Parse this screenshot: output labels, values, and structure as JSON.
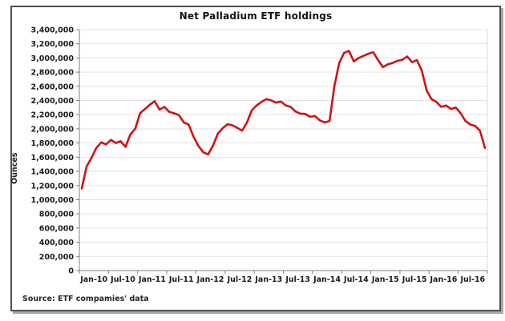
{
  "source_note": "Source: ETF compamies' data",
  "colors": {
    "line": "#d01212",
    "grid": "#e3e3e3",
    "axis": "#7f7f7f",
    "plot_right_border": "#d9d9d9",
    "text": "#1a1a1a",
    "frame_border": "#4f4f4f"
  },
  "chart_data": {
    "type": "line",
    "title": "Net Palladium ETF holdings",
    "xlabel": "",
    "ylabel": "Ounces",
    "ylim": [
      0,
      3400000
    ],
    "ytick_interval": 200000,
    "grid": "horizontal",
    "legend": "none",
    "x_start": "Jan-10",
    "x_end": "Dec-16",
    "frequency": "monthly",
    "xtick_labels": [
      "Jan-10",
      "Jul-10",
      "Jan-11",
      "Jul-11",
      "Jan-12",
      "Jul-12",
      "Jan-13",
      "Jul-13",
      "Jan-14",
      "Jul-14",
      "Jan-15",
      "Jul-15",
      "Jan-16",
      "Jul-16"
    ],
    "values": [
      1160000,
      1470000,
      1590000,
      1730000,
      1810000,
      1780000,
      1845000,
      1800000,
      1825000,
      1745000,
      1920000,
      2000000,
      2220000,
      2280000,
      2340000,
      2390000,
      2270000,
      2310000,
      2240000,
      2220000,
      2195000,
      2090000,
      2060000,
      1890000,
      1760000,
      1670000,
      1640000,
      1760000,
      1930000,
      2010000,
      2065000,
      2050000,
      2015000,
      1975000,
      2090000,
      2260000,
      2330000,
      2380000,
      2420000,
      2400000,
      2370000,
      2385000,
      2330000,
      2310000,
      2245000,
      2215000,
      2210000,
      2170000,
      2180000,
      2120000,
      2090000,
      2110000,
      2600000,
      2930000,
      3070000,
      3100000,
      2950000,
      3000000,
      3030000,
      3060000,
      3080000,
      2970000,
      2870000,
      2910000,
      2930000,
      2960000,
      2975000,
      3020000,
      2940000,
      2970000,
      2820000,
      2540000,
      2420000,
      2380000,
      2310000,
      2330000,
      2280000,
      2300000,
      2220000,
      2110000,
      2060000,
      2040000,
      1970000,
      1730000
    ]
  }
}
